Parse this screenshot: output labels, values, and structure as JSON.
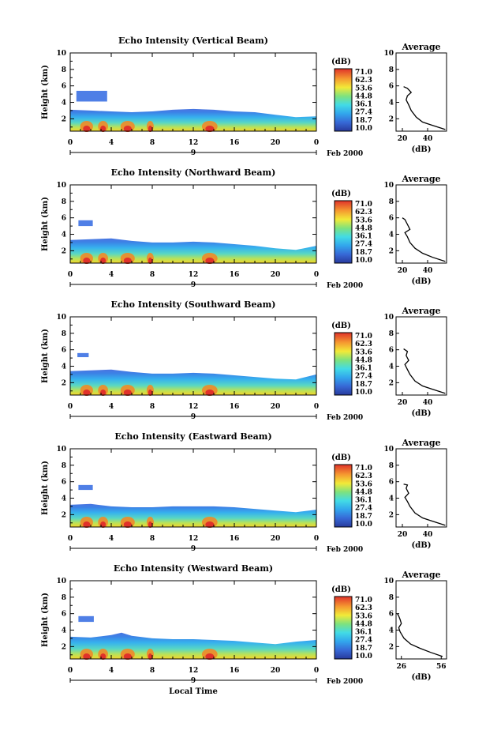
{
  "chart_data": [
    {
      "type": "heatmap",
      "title": "Echo Intensity (Vertical Beam)",
      "ylabel": "Height (km)",
      "xticks": [
        "0",
        "4",
        "8",
        "12",
        "16",
        "20",
        "0"
      ],
      "yticks": [
        "2",
        "4",
        "6",
        "8",
        "10"
      ],
      "xlim": [
        0,
        24
      ],
      "ylim": [
        0.5,
        10
      ],
      "date_marker": "9",
      "date_label": "Feb 2000",
      "colorbar": {
        "unit": "(dB)",
        "ticks": [
          "71.0",
          "62.3",
          "53.6",
          "44.8",
          "36.1",
          "27.4",
          "18.7",
          "10.0"
        ]
      },
      "profile": {
        "title": "Average",
        "xlabel": "(dB)",
        "xticks": [
          "20",
          "40"
        ],
        "xlim": [
          15,
          55
        ],
        "yticks": [
          "2",
          "4",
          "6",
          "8",
          "10"
        ],
        "points": [
          [
            54,
            0.7
          ],
          [
            44,
            1.2
          ],
          [
            36,
            1.6
          ],
          [
            31,
            2.2
          ],
          [
            27,
            3.0
          ],
          [
            25,
            3.7
          ],
          [
            23,
            4.3
          ],
          [
            24,
            4.8
          ],
          [
            27,
            5.2
          ],
          [
            24,
            5.7
          ],
          [
            21,
            5.9
          ]
        ]
      },
      "echo_top": [
        [
          0,
          3.1
        ],
        [
          2,
          3.0
        ],
        [
          4,
          2.9
        ],
        [
          6,
          2.8
        ],
        [
          8,
          2.9
        ],
        [
          10,
          3.1
        ],
        [
          12,
          3.2
        ],
        [
          14,
          3.1
        ],
        [
          16,
          2.9
        ],
        [
          18,
          2.8
        ],
        [
          20,
          2.5
        ],
        [
          22,
          2.2
        ],
        [
          24,
          2.3
        ]
      ],
      "cloud": {
        "x": [
          0.6,
          3.6
        ],
        "y": [
          4.1,
          5.4
        ]
      }
    },
    {
      "type": "heatmap",
      "title": "Echo Intensity (Northward Beam)",
      "ylabel": "Height (km)",
      "xticks": [
        "0",
        "4",
        "8",
        "12",
        "16",
        "20",
        "0"
      ],
      "yticks": [
        "2",
        "4",
        "6",
        "8",
        "10"
      ],
      "xlim": [
        0,
        24
      ],
      "ylim": [
        0.5,
        10
      ],
      "date_marker": "9",
      "date_label": "Feb 2000",
      "colorbar": {
        "unit": "(dB)",
        "ticks": [
          "71.0",
          "62.3",
          "53.6",
          "44.8",
          "36.1",
          "27.4",
          "18.7",
          "10.0"
        ]
      },
      "profile": {
        "title": "Average",
        "xlabel": "(dB)",
        "xticks": [
          "20",
          "40"
        ],
        "xlim": [
          15,
          55
        ],
        "yticks": [
          "2",
          "4",
          "6",
          "8",
          "10"
        ],
        "points": [
          [
            54,
            0.7
          ],
          [
            44,
            1.2
          ],
          [
            36,
            1.7
          ],
          [
            30,
            2.3
          ],
          [
            26,
            3.0
          ],
          [
            24,
            3.7
          ],
          [
            22,
            4.2
          ],
          [
            26,
            4.6
          ],
          [
            24,
            5.2
          ],
          [
            22,
            5.8
          ],
          [
            20,
            6.0
          ]
        ]
      },
      "echo_top": [
        [
          0,
          3.3
        ],
        [
          2,
          3.4
        ],
        [
          4,
          3.5
        ],
        [
          6,
          3.2
        ],
        [
          8,
          3.0
        ],
        [
          10,
          3.0
        ],
        [
          12,
          3.1
        ],
        [
          14,
          3.0
        ],
        [
          16,
          2.8
        ],
        [
          18,
          2.6
        ],
        [
          20,
          2.3
        ],
        [
          22,
          2.1
        ],
        [
          24,
          2.6
        ]
      ],
      "cloud": {
        "x": [
          0.8,
          2.2
        ],
        "y": [
          5.0,
          5.7
        ]
      }
    },
    {
      "type": "heatmap",
      "title": "Echo Intensity (Southward Beam)",
      "ylabel": "Height (km)",
      "xticks": [
        "0",
        "4",
        "8",
        "12",
        "16",
        "20",
        "0"
      ],
      "yticks": [
        "2",
        "4",
        "6",
        "8",
        "10"
      ],
      "xlim": [
        0,
        24
      ],
      "ylim": [
        0.5,
        10
      ],
      "date_marker": "9",
      "date_label": "Feb 2000",
      "colorbar": {
        "unit": "(dB)",
        "ticks": [
          "71.0",
          "62.3",
          "53.6",
          "44.8",
          "36.1",
          "27.4",
          "18.7",
          "10.0"
        ]
      },
      "profile": {
        "title": "Average",
        "xlabel": "(dB)",
        "xticks": [
          "20",
          "40"
        ],
        "xlim": [
          15,
          55
        ],
        "yticks": [
          "2",
          "4",
          "6",
          "8",
          "10"
        ],
        "points": [
          [
            54,
            0.7
          ],
          [
            44,
            1.2
          ],
          [
            36,
            1.6
          ],
          [
            30,
            2.2
          ],
          [
            26,
            3.0
          ],
          [
            24,
            3.6
          ],
          [
            22,
            4.2
          ],
          [
            25,
            4.7
          ],
          [
            23,
            5.3
          ],
          [
            24,
            5.8
          ],
          [
            21,
            6.1
          ]
        ]
      },
      "echo_top": [
        [
          0,
          3.4
        ],
        [
          2,
          3.5
        ],
        [
          4,
          3.6
        ],
        [
          6,
          3.3
        ],
        [
          8,
          3.1
        ],
        [
          10,
          3.1
        ],
        [
          12,
          3.2
        ],
        [
          14,
          3.1
        ],
        [
          16,
          2.9
        ],
        [
          18,
          2.7
        ],
        [
          20,
          2.5
        ],
        [
          22,
          2.4
        ],
        [
          24,
          3.0
        ]
      ],
      "cloud": {
        "x": [
          0.7,
          1.8
        ],
        "y": [
          5.1,
          5.6
        ]
      }
    },
    {
      "type": "heatmap",
      "title": "Echo Intensity (Eastward Beam)",
      "ylabel": "Height (km)",
      "xticks": [
        "0",
        "4",
        "8",
        "12",
        "16",
        "20",
        "0"
      ],
      "yticks": [
        "2",
        "4",
        "6",
        "8",
        "10"
      ],
      "xlim": [
        0,
        24
      ],
      "ylim": [
        0.5,
        10
      ],
      "date_marker": "9",
      "date_label": "Feb 2000",
      "colorbar": {
        "unit": "(dB)",
        "ticks": [
          "71.0",
          "62.3",
          "53.6",
          "44.8",
          "36.1",
          "27.4",
          "18.7",
          "10.0"
        ]
      },
      "profile": {
        "title": "Average",
        "xlabel": "(dB)",
        "xticks": [
          "20",
          "40"
        ],
        "xlim": [
          15,
          55
        ],
        "yticks": [
          "2",
          "4",
          "6",
          "8",
          "10"
        ],
        "points": [
          [
            54,
            0.7
          ],
          [
            44,
            1.2
          ],
          [
            36,
            1.6
          ],
          [
            30,
            2.2
          ],
          [
            26,
            3.0
          ],
          [
            24,
            3.6
          ],
          [
            22,
            4.1
          ],
          [
            25,
            4.6
          ],
          [
            23,
            5.2
          ],
          [
            24,
            5.6
          ],
          [
            21,
            5.7
          ]
        ]
      },
      "echo_top": [
        [
          0,
          3.2
        ],
        [
          2,
          3.3
        ],
        [
          4,
          3.0
        ],
        [
          6,
          2.9
        ],
        [
          8,
          2.9
        ],
        [
          10,
          3.0
        ],
        [
          12,
          3.0
        ],
        [
          14,
          3.0
        ],
        [
          16,
          2.9
        ],
        [
          18,
          2.7
        ],
        [
          20,
          2.5
        ],
        [
          22,
          2.3
        ],
        [
          24,
          2.6
        ]
      ],
      "cloud": {
        "x": [
          0.8,
          2.2
        ],
        "y": [
          5.0,
          5.6
        ]
      }
    },
    {
      "type": "heatmap",
      "title": "Echo Intensity (Westward Beam)",
      "ylabel": "Height (km)",
      "xticks": [
        "0",
        "4",
        "8",
        "12",
        "16",
        "20",
        "0"
      ],
      "yticks": [
        "2",
        "4",
        "6",
        "8",
        "10"
      ],
      "xlim": [
        0,
        24
      ],
      "ylim": [
        0.5,
        10
      ],
      "date_marker": "9",
      "date_label": "Feb 2000",
      "xlabel": "Local Time",
      "colorbar": {
        "unit": "(dB)",
        "ticks": [
          "71.0",
          "62.3",
          "53.6",
          "44.8",
          "36.1",
          "27.4",
          "18.7",
          "10.0"
        ]
      },
      "profile": {
        "title": "Average",
        "xlabel": "(dB)",
        "xticks": [
          "26",
          "56"
        ],
        "xlim": [
          22,
          60
        ],
        "yticks": [
          "2",
          "4",
          "6",
          "8",
          "10"
        ],
        "points": [
          [
            57,
            0.8
          ],
          [
            48,
            1.3
          ],
          [
            40,
            1.8
          ],
          [
            33,
            2.3
          ],
          [
            28,
            3.0
          ],
          [
            25,
            3.8
          ],
          [
            24,
            4.3
          ],
          [
            26,
            4.8
          ],
          [
            25,
            5.3
          ],
          [
            24,
            5.7
          ],
          [
            23,
            6.0
          ]
        ]
      },
      "echo_top": [
        [
          0,
          3.2
        ],
        [
          2,
          3.1
        ],
        [
          4,
          3.4
        ],
        [
          5,
          3.7
        ],
        [
          6,
          3.3
        ],
        [
          8,
          3.0
        ],
        [
          10,
          2.9
        ],
        [
          12,
          2.9
        ],
        [
          14,
          2.8
        ],
        [
          16,
          2.7
        ],
        [
          18,
          2.5
        ],
        [
          20,
          2.3
        ],
        [
          22,
          2.6
        ],
        [
          24,
          2.8
        ]
      ],
      "cloud": {
        "x": [
          0.8,
          2.3
        ],
        "y": [
          5.0,
          5.7
        ]
      }
    }
  ]
}
